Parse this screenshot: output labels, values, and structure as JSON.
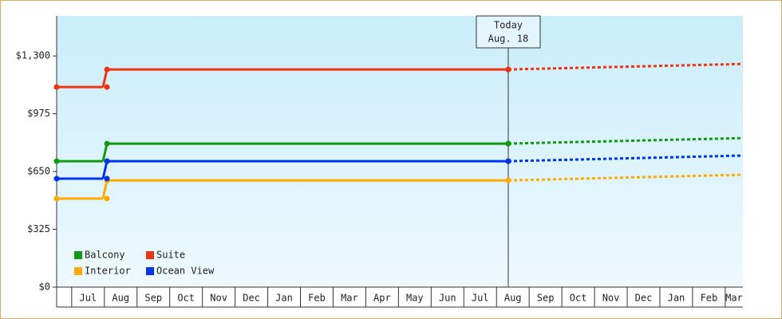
{
  "chart_data": {
    "type": "step",
    "categories": [
      null,
      "Jul",
      "Aug",
      "Sep",
      "Oct",
      "Nov",
      "Dec",
      "Jan",
      "Feb",
      "Mar",
      "Apr",
      "May",
      "Jun",
      "Jul",
      "Aug",
      "Sep",
      "Oct",
      "Nov",
      "Dec",
      "Jan",
      "Feb",
      "Mar"
    ],
    "xlim": [
      -0.46,
      20.54
    ],
    "x": [
      -0.46,
      1.08,
      13.36
    ],
    "forecast_x": [
      13.36,
      20.54
    ],
    "ylim": [
      0,
      1525
    ],
    "yticks": [
      {
        "value": 0,
        "label": "$0"
      },
      {
        "value": 325,
        "label": "$325"
      },
      {
        "value": 650,
        "label": "$650"
      },
      {
        "value": 975,
        "label": "$975"
      },
      {
        "value": 1300,
        "label": "$1,300"
      }
    ],
    "annotation": {
      "lines": [
        "Today",
        "Aug. 18"
      ],
      "x": 13.36
    },
    "legend": "lower left",
    "series": [
      {
        "name": "Balcony",
        "color": "#119911",
        "values": [
          708,
          807,
          807
        ],
        "forecast": [
          807,
          838
        ]
      },
      {
        "name": "Suite",
        "color": "#ee3311",
        "values": [
          1125,
          1224,
          1224
        ],
        "forecast": [
          1224,
          1255
        ]
      },
      {
        "name": "Interior",
        "color": "#ffaa00",
        "values": [
          498,
          600,
          600
        ],
        "forecast": [
          600,
          632
        ]
      },
      {
        "name": "Ocean View",
        "color": "#0033ee",
        "values": [
          610,
          708,
          708
        ],
        "forecast": [
          708,
          740
        ]
      }
    ]
  }
}
